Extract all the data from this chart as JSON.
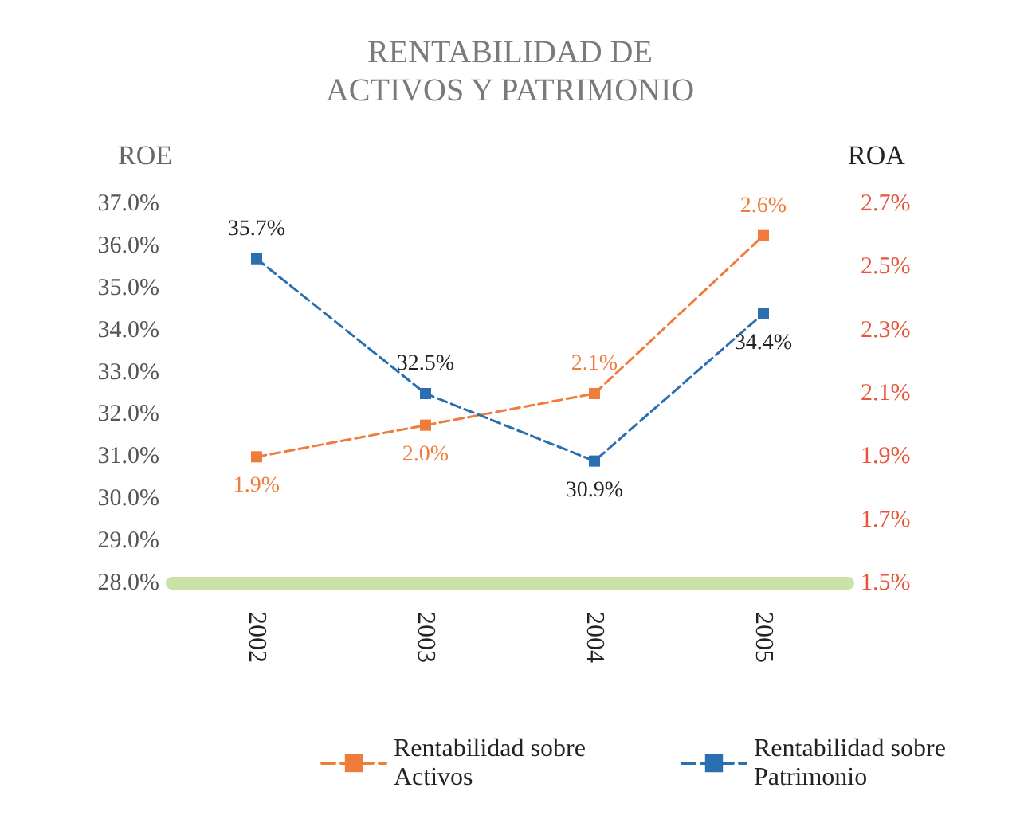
{
  "chart_data": {
    "type": "line",
    "title": "RENTABILIDAD DE\nACTIVOS Y PATRIMONIO",
    "ylabel": "ROE",
    "y2label": "ROA",
    "categories": [
      "2002",
      "2003",
      "2004",
      "2005"
    ],
    "series": [
      {
        "name": "Rentabilidad sobre Activos",
        "color": "#f07c3c",
        "axis": "y2",
        "values": [
          1.9,
          2.0,
          2.1,
          2.6
        ],
        "value_labels": [
          "1.9%",
          "2.0%",
          "2.1%",
          "2.6%"
        ]
      },
      {
        "name": "Rentabilidad sobre Patrimonio",
        "color": "#2a6fb0",
        "values": [
          35.7,
          32.5,
          30.9,
          34.4
        ],
        "value_labels": [
          "35.7%",
          "32.5%",
          "30.9%",
          "34.4%"
        ]
      }
    ],
    "ylim": [
      28,
      37
    ],
    "yticks": [
      {
        "value": 28,
        "label": "28.0%"
      },
      {
        "value": 29,
        "label": "29.0%"
      },
      {
        "value": 30,
        "label": "30.0%"
      },
      {
        "value": 31,
        "label": "31.0%"
      },
      {
        "value": 32,
        "label": "32.0%"
      },
      {
        "value": 33,
        "label": "33.0%"
      },
      {
        "value": 34,
        "label": "34.0%"
      },
      {
        "value": 35,
        "label": "35.0%"
      },
      {
        "value": 36,
        "label": "36.0%"
      },
      {
        "value": 37,
        "label": "37.0%"
      }
    ],
    "y2lim": [
      1.5,
      2.7
    ],
    "y2ticks": [
      {
        "value": 1.5,
        "label": "1.5%"
      },
      {
        "value": 1.7,
        "label": "1.7%"
      },
      {
        "value": 1.9,
        "label": "1.9%"
      },
      {
        "value": 2.1,
        "label": "2.1%"
      },
      {
        "value": 2.3,
        "label": "2.3%"
      },
      {
        "value": 2.5,
        "label": "2.5%"
      },
      {
        "value": 2.7,
        "label": "2.7%"
      }
    ],
    "grid": false,
    "legend": "bottom right",
    "marker": "square",
    "line_style": "dashed"
  }
}
